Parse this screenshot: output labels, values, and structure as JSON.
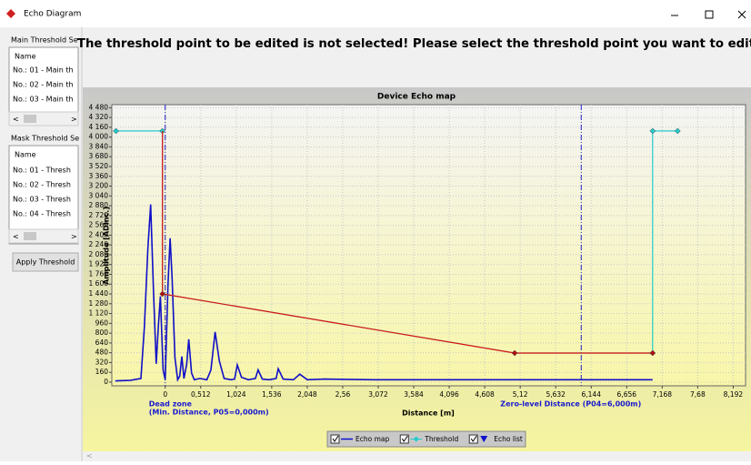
{
  "window": {
    "title": "Echo Diagram"
  },
  "left_panel": {
    "main_group": "Main Threshold Se",
    "main_header": "Name",
    "main_items": [
      "No.: 01 - Main th",
      "No.: 02 - Main th",
      "No.: 03 - Main th"
    ],
    "mask_group": "Mask Threshold Se",
    "mask_header": "Name",
    "mask_items": [
      "No.: 01 - Thresh",
      "No.: 02 - Thresh",
      "No.: 03 - Thresh",
      "No.: 04 - Thresh"
    ],
    "button": "Apply Threshold"
  },
  "message": "The threshold point to be edited is not selected! Please select the threshold point you want to edit.",
  "chart_data": {
    "type": "line",
    "title": "Device Echo map",
    "x_label": "Distance [m]",
    "y_label": "Amplitude [ADInc.]",
    "xlim": [
      -0.77,
      8.37
    ],
    "ylim": [
      -60,
      4530
    ],
    "xticks": [
      0,
      {
        "value": 0.512,
        "label": "0,512"
      },
      {
        "value": 1.024,
        "label": "1,024"
      },
      {
        "value": 1.536,
        "label": "1,536"
      },
      {
        "value": 2.048,
        "label": "2,048"
      },
      {
        "value": 2.56,
        "label": "2,56"
      },
      {
        "value": 3.072,
        "label": "3,072"
      },
      {
        "value": 3.584,
        "label": "3,584"
      },
      {
        "value": 4.096,
        "label": "4,096"
      },
      {
        "value": 4.608,
        "label": "4,608"
      },
      {
        "value": 5.12,
        "label": "5,12"
      },
      {
        "value": 5.632,
        "label": "5,632"
      },
      {
        "value": 6.144,
        "label": "6,144"
      },
      {
        "value": 6.656,
        "label": "6,656"
      },
      {
        "value": 7.168,
        "label": "7,168"
      },
      {
        "value": 7.68,
        "label": "7,68"
      },
      {
        "value": 8.192,
        "label": "8,192"
      }
    ],
    "yticks": [
      0,
      160,
      320,
      480,
      640,
      800,
      960,
      {
        "value": 1120,
        "label": "1 120"
      },
      {
        "value": 1280,
        "label": "1 280"
      },
      {
        "value": 1440,
        "label": "1 440"
      },
      {
        "value": 1600,
        "label": "1 600"
      },
      {
        "value": 1760,
        "label": "1 760"
      },
      {
        "value": 1920,
        "label": "1 920"
      },
      {
        "value": 2080,
        "label": "2 080"
      },
      {
        "value": 2240,
        "label": "2 240"
      },
      {
        "value": 2400,
        "label": "2 400"
      },
      {
        "value": 2560,
        "label": "2 560"
      },
      {
        "value": 2720,
        "label": "2 720"
      },
      {
        "value": 2880,
        "label": "2 880"
      },
      {
        "value": 3040,
        "label": "3 040"
      },
      {
        "value": 3200,
        "label": "3 200"
      },
      {
        "value": 3360,
        "label": "3 360"
      },
      {
        "value": 3520,
        "label": "3 520"
      },
      {
        "value": 3680,
        "label": "3 680"
      },
      {
        "value": 3840,
        "label": "3 840"
      },
      {
        "value": 4000,
        "label": "4 000"
      },
      {
        "value": 4160,
        "label": "4 160"
      },
      {
        "value": 4320,
        "label": "4 320"
      },
      {
        "value": 4480,
        "label": "4 480"
      }
    ],
    "grid": true,
    "series": [
      {
        "name": "Echo map",
        "color": "#1010c8",
        "x": [
          -0.72,
          -0.5,
          -0.35,
          -0.3,
          -0.25,
          -0.21,
          -0.17,
          -0.13,
          -0.1,
          -0.07,
          -0.03,
          0.0,
          0.04,
          0.07,
          0.1,
          0.14,
          0.18,
          0.21,
          0.24,
          0.27,
          0.31,
          0.34,
          0.38,
          0.42,
          0.5,
          0.6,
          0.66,
          0.72,
          0.78,
          0.85,
          0.95,
          1.0,
          1.04,
          1.1,
          1.2,
          1.3,
          1.34,
          1.4,
          1.5,
          1.6,
          1.63,
          1.7,
          1.85,
          1.94,
          2.05,
          2.3,
          3,
          4,
          5,
          6,
          7.03
        ],
        "values": [
          20,
          30,
          60,
          900,
          2200,
          2900,
          1500,
          300,
          900,
          1400,
          200,
          40,
          1600,
          2350,
          1700,
          400,
          40,
          100,
          420,
          60,
          300,
          700,
          150,
          40,
          60,
          40,
          200,
          820,
          350,
          60,
          40,
          50,
          280,
          80,
          40,
          60,
          200,
          50,
          40,
          60,
          220,
          50,
          40,
          130,
          40,
          50,
          40,
          40,
          40,
          40,
          40
        ]
      },
      {
        "name": "Threshold",
        "color": "#22cccc",
        "x": [
          -0.71,
          -0.04,
          -0.04,
          5.04,
          7.03,
          7.03,
          7.39
        ],
        "values": [
          4100,
          4100,
          1440,
          475,
          475,
          4100,
          4100
        ]
      },
      {
        "name": "Echo list",
        "color": "#1010c8",
        "x": [],
        "values": []
      }
    ],
    "main_threshold": {
      "color": "#e01010",
      "x": [
        -0.04,
        -0.04,
        5.04,
        7.03
      ],
      "values": [
        4100,
        1440,
        475,
        475
      ]
    },
    "dead_zone": {
      "x": 0,
      "labels": [
        "Dead zone",
        "(Min. Distance, P05=0,000m)"
      ]
    },
    "zero_level": {
      "x": 6,
      "labels": [
        "Zero-level Distance (P04=6,000m)"
      ]
    }
  }
}
